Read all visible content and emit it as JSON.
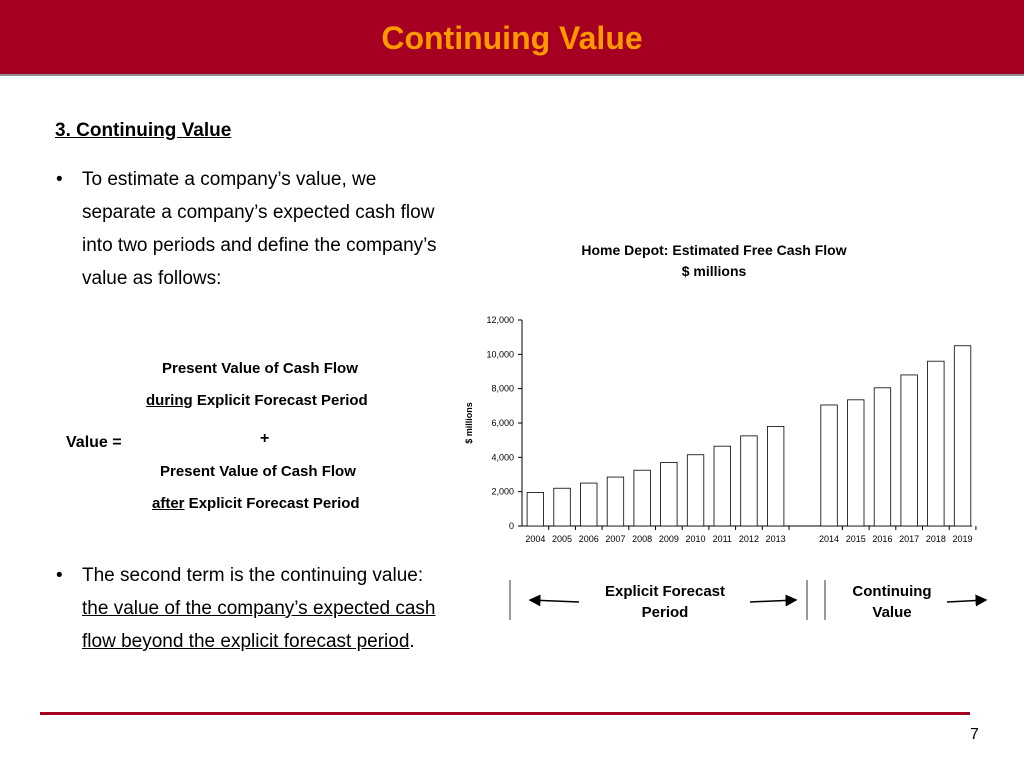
{
  "slide": {
    "title": "Continuing Value",
    "section_heading": "3. Continuing Value",
    "bullet1": "To estimate a company’s value, we separate a company’s expected cash flow into two periods and define the company’s value as follows:",
    "bullet2_prefix": "The second term is the continuing value: ",
    "bullet2_underlined": "the value of the company’s expected cash flow beyond the explicit forecast period",
    "bullet2_suffix": ".",
    "bullet_glyph": "•",
    "page_number": "7"
  },
  "formula": {
    "line1": "Present Value of Cash Flow",
    "line2_underlined": "during",
    "line2_rest": " Explicit Forecast Period",
    "plus": "+",
    "value_label": "Value =",
    "line3": "Present Value of Cash Flow",
    "line4_underlined": "after",
    "line4_rest": " Explicit Forecast Period"
  },
  "chart_data": {
    "type": "bar",
    "title": "Home Depot: Estimated Free Cash Flow",
    "subtitle": "$ millions",
    "ylabel": "$ millions",
    "xlabel": "",
    "ylim": [
      0,
      12000
    ],
    "yticks": [
      0,
      2000,
      4000,
      6000,
      8000,
      10000,
      12000
    ],
    "ytick_labels": [
      "0",
      "2,000",
      "4,000",
      "6,000",
      "8,000",
      "10,000",
      "12,000"
    ],
    "categories": [
      "2004",
      "2005",
      "2006",
      "2007",
      "2008",
      "2009",
      "2010",
      "2011",
      "2012",
      "2013",
      "2014",
      "2015",
      "2016",
      "2017",
      "2018",
      "2019"
    ],
    "values": [
      1950,
      2200,
      2500,
      2850,
      3250,
      3700,
      4150,
      4650,
      5250,
      5800,
      7050,
      7350,
      8050,
      8800,
      9600,
      10500
    ],
    "grid": false,
    "legend": "none"
  },
  "periods": {
    "explicit_label_line1": "Explicit Forecast",
    "explicit_label_line2": "Period",
    "continuing_label_line1": "Continuing",
    "continuing_label_line2": "Value"
  },
  "colors": {
    "header_bg": "#a50021",
    "title_text": "#ff9900",
    "footer_line": "#a50021"
  }
}
